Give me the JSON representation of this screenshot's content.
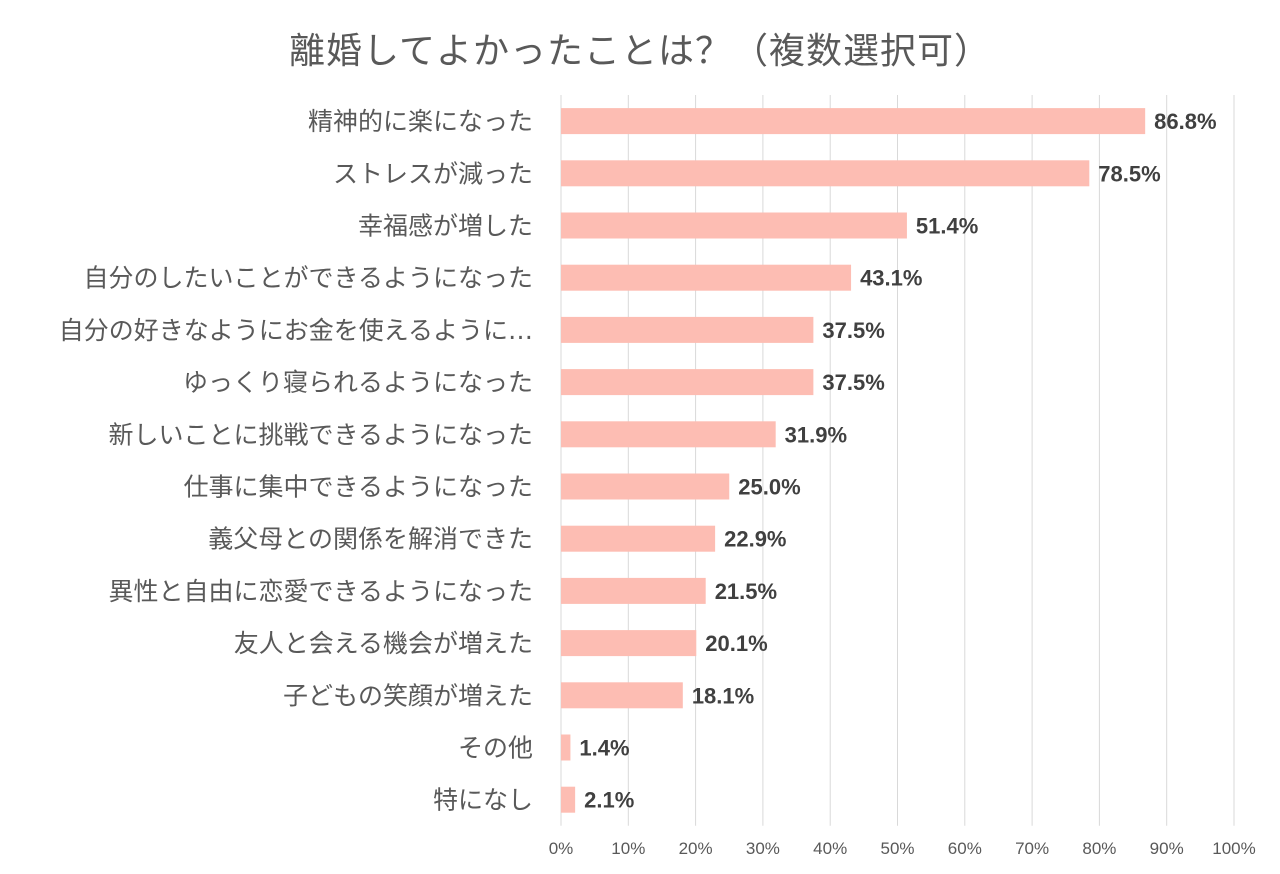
{
  "colors": {
    "bar": "#FDBDB3",
    "grid": "#D9D9D9",
    "text": "#595959",
    "value_text": "#404040"
  },
  "chart_data": {
    "type": "bar",
    "orientation": "horizontal",
    "title": "離婚してよかったことは？（複数選択可）",
    "categories": [
      "精神的に楽になった",
      "ストレスが減った",
      "幸福感が増した",
      "自分のしたいことができるようになった",
      "自分の好きなようにお金を使えるように…",
      "ゆっくり寝られるようになった",
      "新しいことに挑戦できるようになった",
      "仕事に集中できるようになった",
      "義父母との関係を解消できた",
      "異性と自由に恋愛できるようになった",
      "友人と会える機会が増えた",
      "子どもの笑顔が増えた",
      "その他",
      "特になし"
    ],
    "values": [
      86.8,
      78.5,
      51.4,
      43.1,
      37.5,
      37.5,
      31.9,
      25.0,
      22.9,
      21.5,
      20.1,
      18.1,
      1.4,
      2.1
    ],
    "value_labels": [
      "86.8%",
      "78.5%",
      "51.4%",
      "43.1%",
      "37.5%",
      "37.5%",
      "31.9%",
      "25.0%",
      "22.9%",
      "21.5%",
      "20.1%",
      "18.1%",
      "1.4%",
      "2.1%"
    ],
    "xticks": [
      "0%",
      "10%",
      "20%",
      "30%",
      "40%",
      "50%",
      "60%",
      "70%",
      "80%",
      "90%",
      "100%"
    ],
    "xlim": [
      0,
      100
    ],
    "grid": true,
    "legend": "none"
  }
}
